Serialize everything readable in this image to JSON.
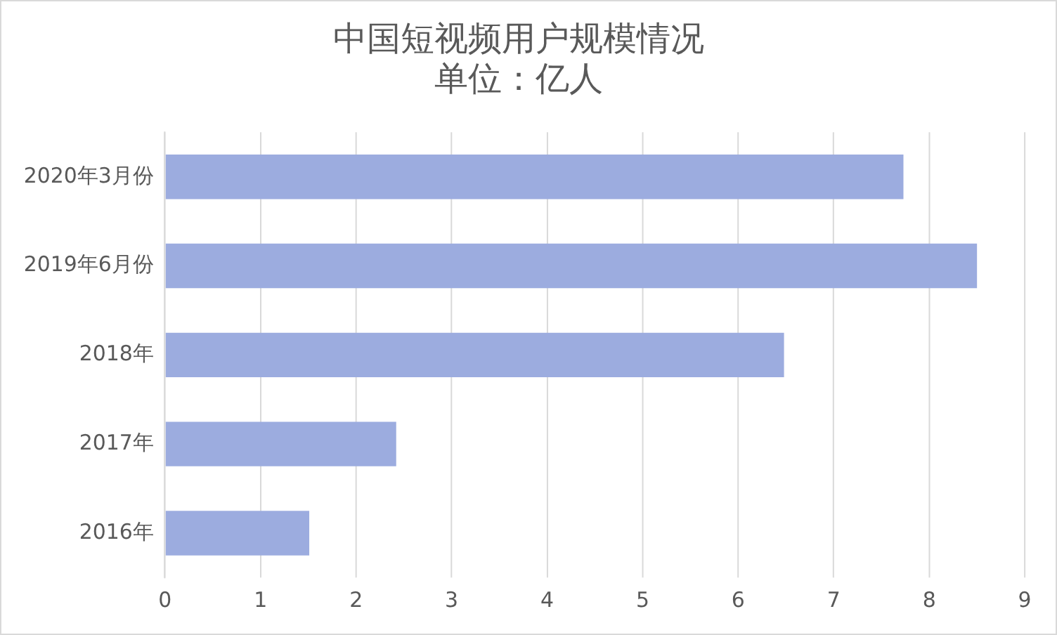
{
  "chart_data": {
    "type": "bar",
    "orientation": "horizontal",
    "title": "中国短视频用户规模情况",
    "subtitle": "单位：亿人",
    "categories": [
      "2020年3月份",
      "2019年6月份",
      "2018年",
      "2017年",
      "2016年"
    ],
    "values": [
      7.73,
      8.5,
      6.48,
      2.42,
      1.51
    ],
    "color": "#9cacdf",
    "xlim": [
      0,
      9
    ],
    "xticks": [
      0,
      1,
      2,
      3,
      4,
      5,
      6,
      7,
      8,
      9
    ],
    "grid": "x",
    "legend": false
  }
}
